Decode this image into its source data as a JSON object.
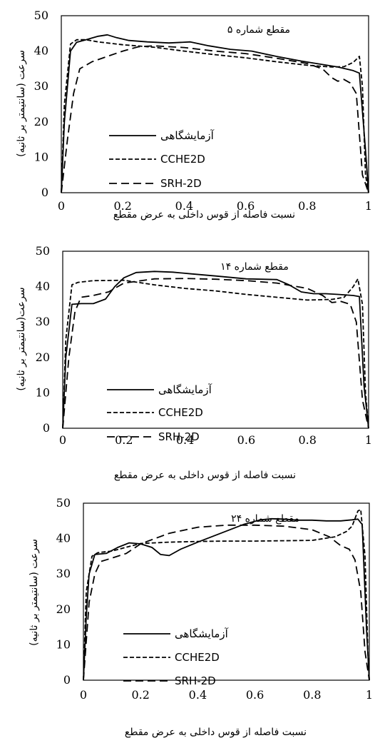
{
  "chart_data": [
    {
      "type": "line",
      "title": "مقطع شماره ۵",
      "xlabel": "نسبت فاصله از قوس داخلی به عرض مقطع",
      "ylabel": "سرعت (سانتیمتر بر ثانیه)",
      "xlim": [
        0,
        1
      ],
      "ylim": [
        0,
        50
      ],
      "x_ticks": [
        "0",
        "0.2",
        "0.4",
        "0.6",
        "0.8",
        "1"
      ],
      "y_ticks": [
        "0",
        "10",
        "20",
        "30",
        "40",
        "50"
      ],
      "legend_position": "left",
      "series": [
        {
          "name": "آزمایشگاهی",
          "style": "solid",
          "color": "#000000",
          "x": [
            0,
            0.01,
            0.03,
            0.05,
            0.08,
            0.12,
            0.15,
            0.18,
            0.22,
            0.28,
            0.35,
            0.42,
            0.48,
            0.55,
            0.62,
            0.7,
            0.78,
            0.85,
            0.9,
            0.95,
            0.97,
            0.99,
            1.0
          ],
          "y": [
            0,
            20,
            40,
            42.5,
            43.2,
            44.2,
            44.6,
            43.8,
            43,
            42.6,
            42.3,
            42.6,
            41.5,
            40.5,
            40,
            38.5,
            37.2,
            36.2,
            35.5,
            34.5,
            33.8,
            12,
            0
          ]
        },
        {
          "name": "CCHE2D",
          "style": "dashed-short",
          "color": "#000000",
          "x": [
            0,
            0.01,
            0.03,
            0.05,
            0.08,
            0.12,
            0.2,
            0.3,
            0.4,
            0.5,
            0.6,
            0.7,
            0.8,
            0.88,
            0.92,
            0.95,
            0.97,
            0.98,
            0.99,
            1.0
          ],
          "y": [
            0,
            25,
            42,
            43.2,
            43.2,
            42.6,
            41.8,
            41.1,
            40,
            39,
            38.1,
            37,
            36,
            35.5,
            35.6,
            36.8,
            38.5,
            30,
            5,
            0
          ]
        },
        {
          "name": "SRH-2D",
          "style": "dashed-long",
          "color": "#000000",
          "x": [
            0,
            0.02,
            0.04,
            0.06,
            0.1,
            0.15,
            0.2,
            0.25,
            0.3,
            0.4,
            0.5,
            0.6,
            0.7,
            0.8,
            0.85,
            0.88,
            0.9,
            0.92,
            0.94,
            0.96,
            0.98,
            1.0
          ],
          "y": [
            0,
            15,
            28,
            35,
            37,
            38.5,
            40,
            41.2,
            41.5,
            41,
            40,
            39.3,
            38,
            36.5,
            35,
            32.5,
            31.5,
            32,
            31,
            28,
            5,
            0
          ]
        }
      ]
    },
    {
      "type": "line",
      "title": "مقطع شماره ۱۴",
      "xlabel": "نسبت فاصله از قوس  داخلی به عرض مقطع",
      "ylabel": "سرعت(سانتیمتر بر ثانیه)",
      "xlim": [
        0,
        1
      ],
      "ylim": [
        0,
        50
      ],
      "x_ticks": [
        "0",
        "0.2",
        "0.4",
        "0.6",
        "0.8",
        "1"
      ],
      "y_ticks": [
        "0",
        "10",
        "20",
        "30",
        "40",
        "50"
      ],
      "legend_position": "left",
      "series": [
        {
          "name": "آزمایشگاهی",
          "style": "solid",
          "color": "#000000",
          "x": [
            0,
            0.01,
            0.03,
            0.06,
            0.1,
            0.14,
            0.17,
            0.2,
            0.24,
            0.3,
            0.36,
            0.42,
            0.5,
            0.6,
            0.7,
            0.74,
            0.78,
            0.82,
            0.86,
            0.9,
            0.95,
            0.97,
            0.985,
            1.0
          ],
          "y": [
            0,
            20,
            35,
            35.2,
            35.2,
            36.5,
            40,
            42.5,
            44,
            44.3,
            44.1,
            43.6,
            43,
            42.2,
            42,
            40.5,
            38.5,
            38,
            38,
            37.8,
            37.5,
            37.2,
            12,
            0
          ]
        },
        {
          "name": "CCHE2D",
          "style": "dashed-short",
          "color": "#000000",
          "x": [
            0,
            0.01,
            0.03,
            0.05,
            0.1,
            0.2,
            0.3,
            0.4,
            0.5,
            0.6,
            0.7,
            0.8,
            0.88,
            0.92,
            0.95,
            0.965,
            0.98,
            0.99,
            1.0
          ],
          "y": [
            0,
            25,
            40.5,
            41.2,
            41.7,
            41.8,
            40.5,
            39.5,
            38.8,
            37.8,
            37,
            36.2,
            36.4,
            37,
            40,
            42.2,
            35,
            10,
            0
          ]
        },
        {
          "name": "SRH-2D",
          "style": "dashed-long",
          "color": "#000000",
          "x": [
            0,
            0.02,
            0.04,
            0.06,
            0.1,
            0.15,
            0.2,
            0.3,
            0.4,
            0.5,
            0.6,
            0.7,
            0.8,
            0.85,
            0.88,
            0.91,
            0.94,
            0.96,
            0.98,
            1.0
          ],
          "y": [
            0,
            20,
            33,
            37,
            37.5,
            38.5,
            41,
            42.2,
            42.3,
            42.1,
            41.7,
            41,
            39.5,
            37.5,
            35.5,
            35.8,
            35,
            30,
            8,
            0
          ]
        }
      ]
    },
    {
      "type": "line",
      "title": "مقطع شماره ۲۴",
      "xlabel": "نسبت فاصله از قوس داخلی به عرض مقطع",
      "ylabel": "سرعت (سانتیمتر بر ثانیه)",
      "xlim": [
        0,
        1
      ],
      "ylim": [
        0,
        50
      ],
      "x_ticks": [
        "0",
        "0.2",
        "0.4",
        "0.6",
        "0.8",
        "1"
      ],
      "y_ticks": [
        "0",
        "10",
        "20",
        "30",
        "40",
        "50"
      ],
      "legend_position": "left",
      "series": [
        {
          "name": "آزمایشگاهی",
          "style": "solid",
          "color": "#000000",
          "x": [
            0,
            0.01,
            0.02,
            0.04,
            0.08,
            0.12,
            0.16,
            0.2,
            0.24,
            0.27,
            0.3,
            0.34,
            0.4,
            0.48,
            0.56,
            0.62,
            0.66,
            0.7,
            0.75,
            0.8,
            0.85,
            0.9,
            0.94,
            0.96,
            0.975,
            0.99,
            1.0
          ],
          "y": [
            0,
            18,
            30,
            35.5,
            35.8,
            37.5,
            38.8,
            38.5,
            37.5,
            35.5,
            35.2,
            37,
            39,
            41.5,
            44,
            45.3,
            45.6,
            45.5,
            45.2,
            45.2,
            45,
            45,
            45.3,
            45.5,
            44,
            15,
            0
          ]
        },
        {
          "name": "CCHE2D",
          "style": "dashed-short",
          "color": "#000000",
          "x": [
            0,
            0.01,
            0.03,
            0.05,
            0.1,
            0.2,
            0.3,
            0.4,
            0.5,
            0.6,
            0.7,
            0.8,
            0.88,
            0.92,
            0.94,
            0.96,
            0.97,
            0.985,
            0.995,
            1.0
          ],
          "y": [
            0,
            25,
            35,
            36,
            36.5,
            38.6,
            39,
            39.2,
            39.3,
            39.3,
            39.4,
            39.5,
            40.5,
            42,
            43.5,
            47.8,
            48.2,
            35,
            8,
            0
          ]
        },
        {
          "name": "SRH-2D",
          "style": "dashed-long",
          "color": "#000000",
          "x": [
            0,
            0.02,
            0.04,
            0.06,
            0.1,
            0.15,
            0.2,
            0.3,
            0.4,
            0.5,
            0.6,
            0.7,
            0.8,
            0.86,
            0.9,
            0.93,
            0.95,
            0.97,
            0.985,
            1.0
          ],
          "y": [
            0,
            22,
            30,
            33.5,
            34.5,
            35.8,
            38.5,
            41.5,
            43.2,
            43.8,
            43.8,
            43.5,
            42.5,
            40.5,
            38,
            37,
            34,
            25,
            8,
            0
          ]
        }
      ]
    }
  ]
}
